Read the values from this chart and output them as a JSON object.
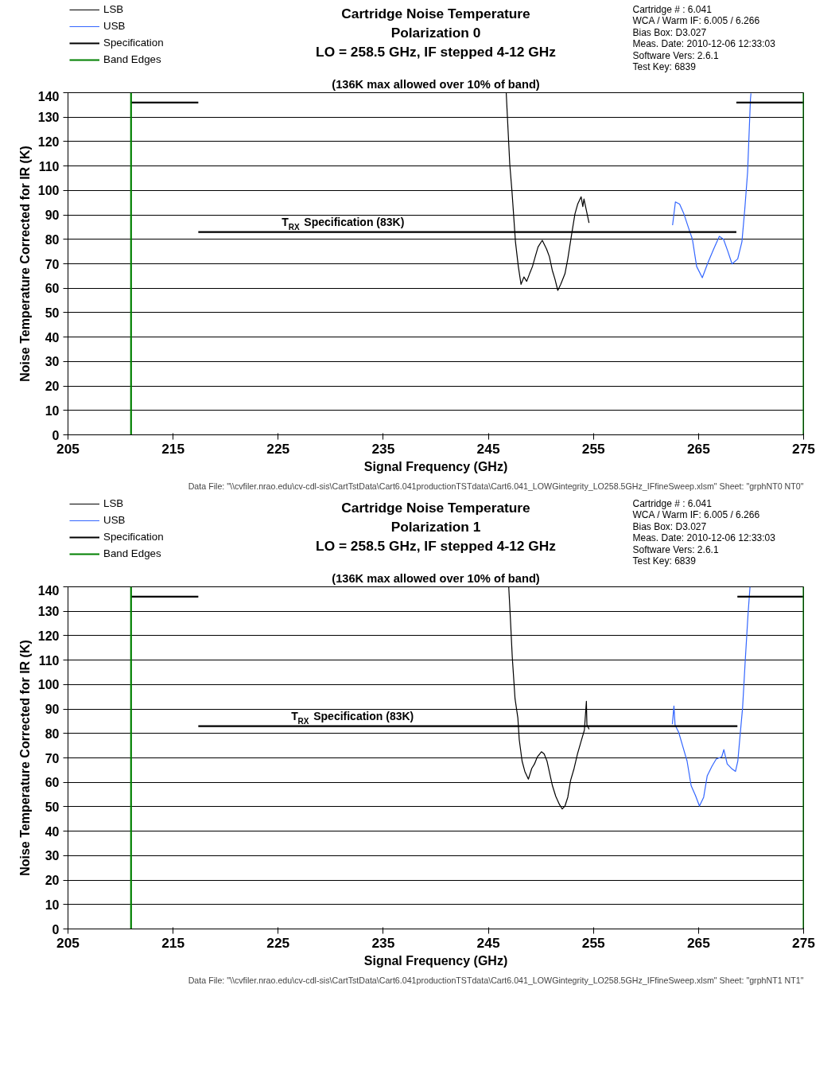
{
  "chart_data": [
    {
      "type": "line",
      "title": "Cartridge Noise Temperature\nPolarization 0\nLO = 258.5 GHz, IF stepped 4-12 GHz",
      "xlabel": "Signal Frequency (GHz)",
      "ylabel": "Noise Temperature Corrected for IR (K)",
      "xlim": [
        205,
        275
      ],
      "xticks": [
        205,
        215,
        225,
        235,
        245,
        255,
        265,
        275
      ],
      "ylim": [
        0,
        140
      ],
      "yticks": [
        0,
        10,
        20,
        30,
        40,
        50,
        60,
        70,
        80,
        90,
        100,
        110,
        120,
        130,
        140
      ],
      "grid": "y",
      "legend": "top left",
      "series": [
        {
          "name": "LSB",
          "color": "#000000",
          "x": [
            246.7,
            247.04,
            247.25,
            247.58,
            247.85,
            248.11,
            248.39,
            248.65,
            248.92,
            249.2,
            249.46,
            249.73,
            250.13,
            250.54,
            250.81,
            251.08,
            251.34,
            251.61,
            251.89,
            252.29,
            252.56,
            252.96,
            253.24,
            253.5,
            253.83,
            253.99,
            254.1,
            254.58
          ],
          "values": [
            140,
            110.6,
            99.6,
            79,
            69,
            61.6,
            64.6,
            62.8,
            65.9,
            68.9,
            72.9,
            76.9,
            79.6,
            76,
            72.9,
            67.4,
            63.7,
            59.1,
            61.6,
            65.9,
            72,
            83,
            90.4,
            94.4,
            97.4,
            93.4,
            96.5,
            86.7
          ]
        },
        {
          "name": "USB",
          "color": "#3366ff",
          "x": [
            262.53,
            262.8,
            263.2,
            263.61,
            264.01,
            264.42,
            264.82,
            265.36,
            265.9,
            266.44,
            266.98,
            267.38,
            267.79,
            268.19,
            268.73,
            269.13,
            269.4,
            269.67,
            269.94,
            269.99
          ],
          "values": [
            85.8,
            95.3,
            94.4,
            90.4,
            85.2,
            80,
            68.9,
            64.3,
            70.5,
            76,
            81.2,
            80,
            75.1,
            69.9,
            72,
            79,
            92.2,
            107.5,
            137.3,
            139.7
          ]
        },
        {
          "name": "Specification",
          "color": "#000000",
          "x": [
            211,
            217.4,
            null,
            217.4,
            268.6,
            null,
            268.6,
            275
          ],
          "values": [
            136,
            136,
            null,
            83,
            83,
            null,
            136,
            136
          ]
        },
        {
          "name": "Band Edges",
          "color": "#008000",
          "x": [
            211,
            211,
            null,
            275,
            275
          ],
          "values": [
            0,
            140,
            null,
            0,
            140
          ]
        }
      ],
      "annotations": [
        "(136K max allowed over 10% of band)",
        {
          "text": "T$_{RX}$ Specification (83K)",
          "x": 232.6,
          "y": 83
        },
        "Cartridge # :      6.041",
        "WCA / Warm IF:  6.005 / 6.266",
        "Bias Box:          D3.027",
        "Meas. Date:        2010-12-06 12:33:03",
        "Software Vers:  2.6.1",
        "Test Key: 6839",
        "Data File: \"\\\\cvfiler.nrao.edu\\cv-cdl-sis\\CartTstData\\Cart6.041productionTSTdata\\Cart6.041_LOWGintegrity_LO258.5GHz_IFfineSweep.xlsm\" Sheet: \"grphNT0 NT0\""
      ]
    },
    {
      "type": "line",
      "title": "Cartridge Noise Temperature\nPolarization 1\nLO = 258.5 GHz, IF stepped 4-12 GHz",
      "xlabel": "Signal Frequency (GHz)",
      "ylabel": "Noise Temperature Corrected for IR (K)",
      "xlim": [
        205,
        275
      ],
      "xticks": [
        205,
        215,
        225,
        235,
        245,
        255,
        265,
        275
      ],
      "ylim": [
        0,
        140
      ],
      "yticks": [
        0,
        10,
        20,
        30,
        40,
        50,
        60,
        70,
        80,
        90,
        100,
        110,
        120,
        130,
        140
      ],
      "grid": "y",
      "legend": "top left",
      "series": [
        {
          "name": "LSB",
          "color": "#000000",
          "x": [
            246.94,
            247.1,
            247.28,
            247.54,
            247.81,
            247.94,
            248.21,
            248.47,
            248.81,
            249.13,
            249.39,
            249.66,
            250.05,
            250.31,
            250.58,
            250.84,
            251.1,
            251.42,
            251.77,
            252.03,
            252.29,
            252.56,
            252.82,
            253.16,
            253.48,
            253.8,
            254.14,
            254.33,
            254.38,
            254.59
          ],
          "values": [
            140,
            126.8,
            111,
            94.2,
            86.3,
            77.5,
            68.7,
            64.5,
            61.3,
            65.7,
            67.5,
            70.4,
            72.5,
            71.6,
            68.7,
            63.6,
            58.6,
            54.2,
            50.9,
            49.1,
            50.3,
            53.9,
            60.7,
            65.7,
            71.6,
            76.4,
            81.4,
            93.2,
            83.5,
            81.7
          ]
        },
        {
          "name": "USB",
          "color": "#3366ff",
          "x": [
            262.51,
            262.66,
            262.77,
            263.11,
            263.51,
            263.91,
            264.3,
            264.7,
            265.09,
            265.49,
            265.83,
            266.28,
            266.68,
            267.21,
            267.41,
            267.73,
            268.13,
            268.52,
            268.74,
            268.92,
            269.19,
            269.45,
            269.71,
            269.9
          ],
          "values": [
            83.8,
            91.2,
            83.4,
            80.5,
            74.6,
            68.7,
            58.6,
            54.7,
            50.3,
            53.9,
            62.7,
            66.6,
            69.5,
            70.4,
            73.4,
            67.5,
            65.7,
            64.5,
            68.7,
            77.5,
            90.3,
            110.1,
            128.7,
            140
          ]
        },
        {
          "name": "Specification",
          "color": "#000000",
          "x": [
            211,
            217.4,
            null,
            217.4,
            268.7,
            null,
            268.7,
            275
          ],
          "values": [
            136,
            136,
            null,
            83,
            83,
            null,
            136,
            136
          ]
        },
        {
          "name": "Band Edges",
          "color": "#008000",
          "x": [
            211,
            211,
            null,
            275,
            275
          ],
          "values": [
            0,
            140,
            null,
            0,
            140
          ]
        }
      ],
      "annotations": [
        "(136K max allowed over 10% of band)",
        {
          "text": "T$_{RX}$ Specification (83K)",
          "x": 233.5,
          "y": 83
        },
        "Cartridge # :      6.041",
        "WCA / Warm IF:  6.005 / 6.266",
        "Bias Box:          D3.027",
        "Meas. Date:        2010-12-06 12:33:03",
        "Software Vers:  2.6.1",
        "Test Key: 6839",
        "Data File: \"\\\\cvfiler.nrao.edu\\cv-cdl-sis\\CartTstData\\Cart6.041productionTSTdata\\Cart6.041_LOWGintegrity_LO258.5GHz_IFfineSweep.xlsm\" Sheet: \"grphNT1 NT1\""
      ]
    }
  ]
}
